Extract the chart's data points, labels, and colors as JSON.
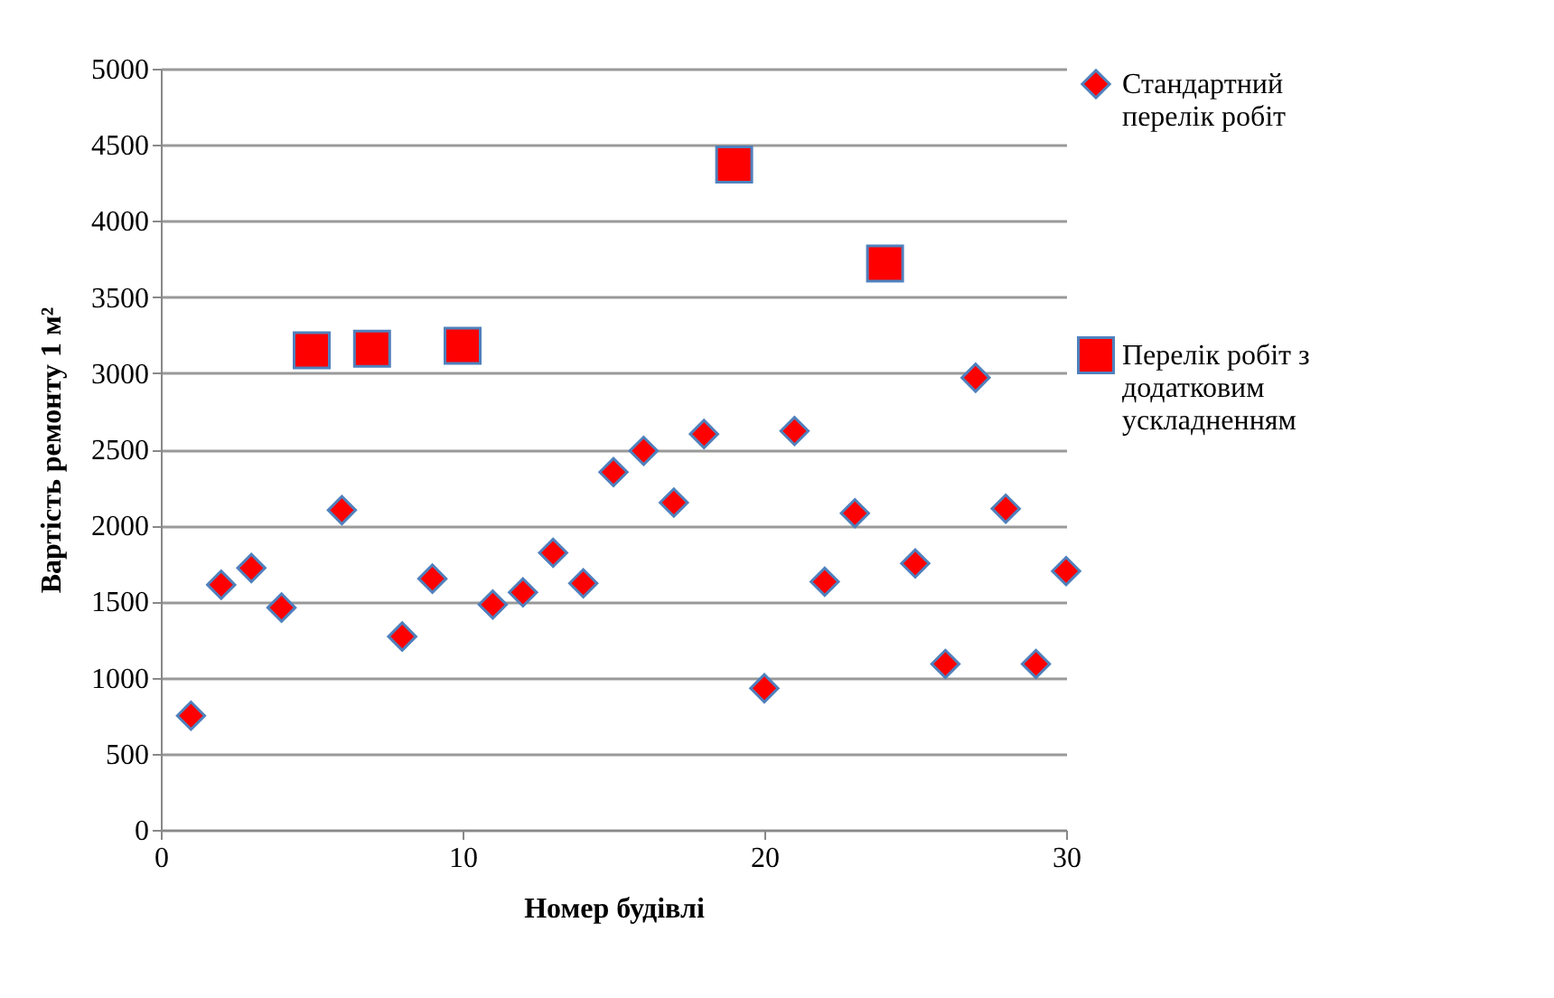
{
  "chart_data": {
    "type": "scatter",
    "xlabel": "Номер будівлі",
    "ylabel": "Вартість ремонту 1 м²",
    "xlim": [
      0,
      30
    ],
    "xticks": [
      0,
      10,
      20,
      30
    ],
    "ylim": [
      0,
      5000
    ],
    "yticks": [
      0,
      500,
      1000,
      1500,
      2000,
      2500,
      3000,
      3500,
      4000,
      4500,
      5000
    ],
    "grid": "y",
    "legend": "right",
    "series": [
      {
        "name": "Стандартний перелік робіт",
        "color": "#ff0000",
        "marker": "diamond",
        "x": [
          1,
          2,
          3,
          4,
          6,
          8,
          9,
          11,
          12,
          13,
          14,
          15,
          16,
          17,
          18,
          20,
          21,
          22,
          23,
          25,
          26,
          27,
          28,
          29,
          30
        ],
        "values": [
          750,
          1610,
          1720,
          1460,
          2100,
          1270,
          1650,
          1480,
          1560,
          1820,
          1620,
          2350,
          2490,
          2150,
          2600,
          930,
          2620,
          1630,
          2080,
          1750,
          1090,
          2970,
          2110,
          1090,
          1700
        ]
      },
      {
        "name": "Перелік робіт з додатковим ускладненням",
        "color": "#ff0000",
        "marker": "square",
        "x": [
          5,
          7,
          10,
          19,
          24
        ],
        "values": [
          3150,
          3160,
          3180,
          4370,
          3720
        ]
      }
    ]
  }
}
